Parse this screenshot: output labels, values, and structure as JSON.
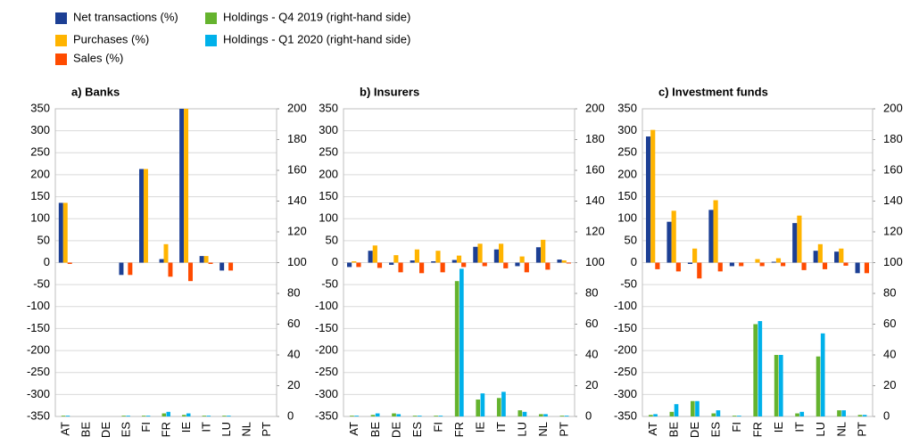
{
  "chart_data": [
    {
      "type": "bar",
      "title": "a) Banks",
      "categories": [
        "AT",
        "BE",
        "DE",
        "ES",
        "FI",
        "FR",
        "IE",
        "IT",
        "LU",
        "NL",
        "PT"
      ],
      "ylim": [
        -350,
        350
      ],
      "yticks": [
        -350,
        -300,
        -250,
        -200,
        -150,
        -100,
        -50,
        0,
        50,
        100,
        150,
        200,
        250,
        300,
        350
      ],
      "y2lim": [
        0,
        200
      ],
      "y2ticks": [
        0,
        20,
        40,
        60,
        80,
        100,
        120,
        140,
        160,
        180,
        200
      ],
      "grid": true,
      "series": [
        {
          "name": "Net transactions (%)",
          "color": "#1c3f94",
          "values": [
            136,
            0,
            0,
            -28,
            213,
            8,
            350,
            15,
            -18,
            0,
            0
          ]
        },
        {
          "name": "Purchases (%)",
          "color": "#ffb400",
          "values": [
            136,
            0,
            0,
            0,
            213,
            42,
            350,
            15,
            0,
            0,
            0
          ]
        },
        {
          "name": "Sales (%)",
          "color": "#ff4b00",
          "values": [
            -3,
            0,
            0,
            -28,
            0,
            -32,
            -42,
            -3,
            -18,
            0,
            0
          ]
        },
        {
          "name": "Holdings - Q4 2019 (right-hand side)",
          "color": "#65b32e",
          "axis": "y2",
          "values": [
            0.5,
            0,
            0,
            0.5,
            0.5,
            2,
            1,
            0.5,
            0.5,
            0,
            0
          ]
        },
        {
          "name": "Holdings - Q1 2020 (right-hand side)",
          "color": "#00b1ea",
          "axis": "y2",
          "values": [
            0.5,
            0,
            0,
            0.5,
            0.5,
            3,
            2,
            0.5,
            0.5,
            0,
            0
          ]
        }
      ]
    },
    {
      "type": "bar",
      "title": "b) Insurers",
      "categories": [
        "AT",
        "BE",
        "DE",
        "ES",
        "FI",
        "FR",
        "IE",
        "IT",
        "LU",
        "NL",
        "PT"
      ],
      "ylim": [
        -350,
        350
      ],
      "yticks": [
        -350,
        -300,
        -250,
        -200,
        -150,
        -100,
        -50,
        0,
        50,
        100,
        150,
        200,
        250,
        300,
        350
      ],
      "y2lim": [
        0,
        200
      ],
      "y2ticks": [
        0,
        20,
        40,
        60,
        80,
        100,
        120,
        140,
        160,
        180,
        200
      ],
      "grid": true,
      "series": [
        {
          "values": [
            -10,
            27,
            -5,
            5,
            3,
            6,
            36,
            30,
            -8,
            35,
            7
          ]
        },
        {
          "values": [
            3,
            39,
            17,
            30,
            27,
            16,
            43,
            43,
            14,
            52,
            5
          ]
        },
        {
          "values": [
            -10,
            -12,
            -22,
            -24,
            -22,
            -10,
            -8,
            -13,
            -22,
            -16,
            -2
          ]
        },
        {
          "axis": "y2",
          "values": [
            0.5,
            1,
            2,
            0.5,
            0.5,
            88,
            11,
            12,
            4,
            1.5,
            0.5
          ]
        },
        {
          "axis": "y2",
          "values": [
            0.5,
            2,
            1.5,
            0.5,
            0.5,
            96,
            15,
            16,
            3,
            1.5,
            0.5
          ]
        }
      ]
    },
    {
      "type": "bar",
      "title": "c) Investment funds",
      "categories": [
        "AT",
        "BE",
        "DE",
        "ES",
        "FI",
        "FR",
        "IE",
        "IT",
        "LU",
        "NL",
        "PT"
      ],
      "ylim": [
        -350,
        350
      ],
      "yticks": [
        -350,
        -300,
        -250,
        -200,
        -150,
        -100,
        -50,
        0,
        50,
        100,
        150,
        200,
        250,
        300,
        350
      ],
      "y2lim": [
        0,
        200
      ],
      "y2ticks": [
        0,
        20,
        40,
        60,
        80,
        100,
        120,
        140,
        160,
        180,
        200
      ],
      "grid": true,
      "series": [
        {
          "values": [
            287,
            93,
            -3,
            120,
            -8,
            0,
            2,
            90,
            27,
            25,
            -24
          ]
        },
        {
          "values": [
            302,
            118,
            32,
            142,
            0,
            8,
            10,
            107,
            42,
            32,
            0
          ]
        },
        {
          "values": [
            -15,
            -20,
            -36,
            -20,
            -8,
            -8,
            -8,
            -17,
            -15,
            -7,
            -24
          ]
        },
        {
          "axis": "y2",
          "values": [
            1,
            3,
            10,
            2,
            0.5,
            60,
            40,
            2,
            39,
            4,
            1
          ]
        },
        {
          "axis": "y2",
          "values": [
            1.5,
            8,
            10,
            4,
            0.5,
            62,
            40,
            3,
            54,
            4,
            1
          ]
        }
      ]
    }
  ]
}
